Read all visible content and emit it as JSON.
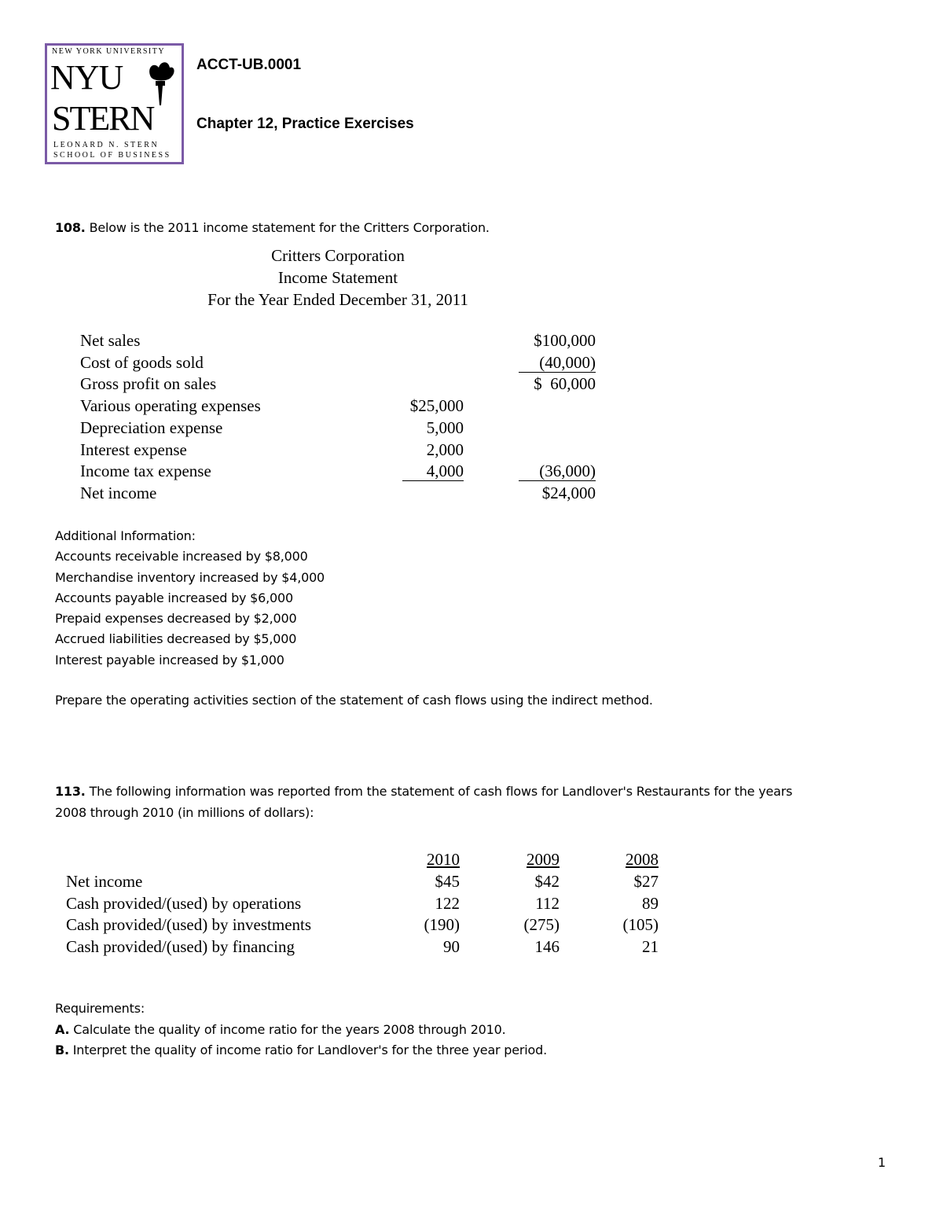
{
  "header": {
    "logo": {
      "line1": "NEW YORK UNIVERSITY",
      "nyu": "NYU",
      "stern": "STERN",
      "line2": "LEONARD N. STERN",
      "line3": "SCHOOL OF BUSINESS",
      "border_color": "#7b5aa6"
    },
    "course": "ACCT-UB.0001",
    "title": "Chapter 12, Practice Exercises"
  },
  "q108": {
    "number": "108.",
    "text": " Below is the 2011 income statement for the Critters Corporation.",
    "statement": {
      "title": [
        "Critters Corporation",
        "Income Statement",
        "For the Year Ended December 31, 2011"
      ],
      "rows": [
        {
          "label": "Net sales",
          "mid": "",
          "right": "$100,000"
        },
        {
          "label": "Cost of goods sold",
          "mid": "",
          "right": "(40,000)"
        },
        {
          "label": "Gross profit on sales",
          "mid": "",
          "right": "$  60,000"
        },
        {
          "label": "Various operating expenses",
          "mid": "$25,000",
          "right": ""
        },
        {
          "label": "Depreciation expense",
          "mid": "5,000",
          "right": ""
        },
        {
          "label": "Interest expense",
          "mid": "2,000",
          "right": ""
        },
        {
          "label": "Income tax expense",
          "mid": "4,000",
          "right": "(36,000)"
        },
        {
          "label": "Net income",
          "mid": "",
          "right": "$24,000"
        }
      ]
    },
    "additional_heading": "Additional Information:",
    "additional": [
      "Accounts receivable increased by $8,000",
      "Merchandise inventory increased by $4,000",
      "Accounts payable increased by $6,000",
      "Prepaid expenses decreased by $2,000",
      "Accrued liabilities decreased by $5,000",
      "Interest payable increased by $1,000"
    ],
    "instruction": "Prepare the operating activities section of the statement of cash flows using the indirect method."
  },
  "q113": {
    "number": "113.",
    "text_line1": " The following information was reported from the statement of cash flows for Landlover's Restaurants for the years",
    "text_line2": "2008 through 2010 (in millions of dollars):",
    "table": {
      "columns": [
        "2010",
        "2009",
        "2008"
      ],
      "rows": [
        {
          "label": "Net income",
          "values": [
            "$45",
            "$42",
            "$27"
          ]
        },
        {
          "label": "Cash provided/(used) by operations",
          "values": [
            "122",
            "112",
            "89"
          ]
        },
        {
          "label": "Cash provided/(used) by investments",
          "values": [
            "(190)",
            "(275)",
            "(105)"
          ]
        },
        {
          "label": "Cash provided/(used) by financing",
          "values": [
            "90",
            "146",
            "21"
          ]
        }
      ]
    },
    "requirements_heading": "Requirements:",
    "requirements": [
      {
        "letter": "A.",
        "text": " Calculate the quality of income ratio for the years 2008 through 2010."
      },
      {
        "letter": "B.",
        "text": " Interpret the quality of income ratio for Landlover's for the three year period."
      }
    ]
  },
  "page_number": "1"
}
